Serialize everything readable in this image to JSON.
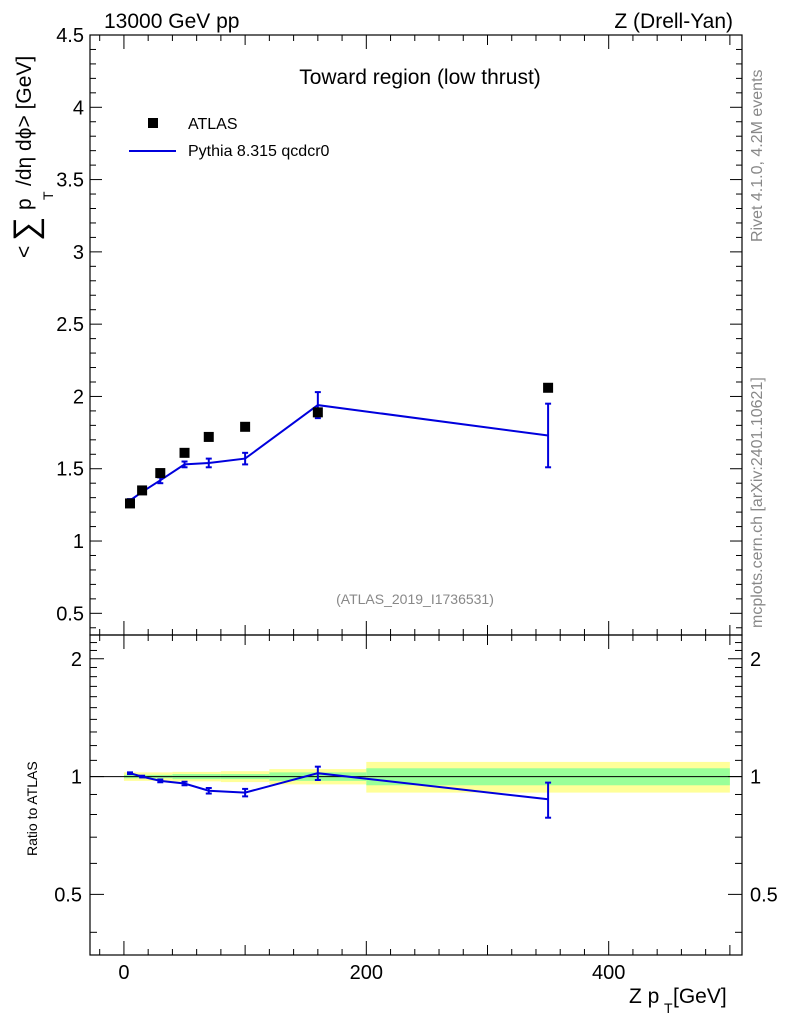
{
  "header": {
    "left": "13000 GeV pp",
    "right": "Z (Drell-Yan)"
  },
  "side_text": {
    "rivet": "Rivet 4.1.0,  4.2M events",
    "source": "mcplots.cern.ch [arXiv:2401.10621]"
  },
  "chart_data": [
    {
      "type": "scatter",
      "panel": "main",
      "title": "Toward region (low thrust)",
      "watermark": "(ATLAS_2019_I1736531)",
      "ylabel_parts": {
        "open": "<",
        "sum": "∑",
        "p": "p",
        "sub": "T",
        "rest": "/dη dϕ> [GeV]"
      },
      "xlim": [
        -28,
        510
      ],
      "ylim": [
        0.35,
        4.5
      ],
      "yticks": [
        0.5,
        1,
        1.5,
        2,
        2.5,
        3,
        3.5,
        4,
        4.5
      ],
      "ytick_labels": [
        "0.5",
        "1",
        "1.5",
        "2",
        "2.5",
        "3",
        "3.5",
        "4",
        "4.5"
      ],
      "legend": [
        {
          "label": "ATLAS",
          "marker": "square",
          "color": "#000000"
        },
        {
          "label": "Pythia 8.315 qcdcr0",
          "marker": "line",
          "color": "#0000dd"
        }
      ],
      "series": [
        {
          "name": "ATLAS",
          "color": "#000000",
          "x": [
            5,
            15,
            30,
            50,
            70,
            100,
            160,
            350
          ],
          "y": [
            1.26,
            1.35,
            1.47,
            1.61,
            1.72,
            1.79,
            1.89,
            2.06
          ]
        },
        {
          "name": "Pythia 8.315 qcdcr0",
          "color": "#0000dd",
          "x": [
            5,
            15,
            30,
            50,
            70,
            100,
            160,
            350
          ],
          "y": [
            1.28,
            1.34,
            1.42,
            1.53,
            1.54,
            1.57,
            1.94,
            1.73
          ],
          "yerr": [
            0.01,
            0.01,
            0.02,
            0.02,
            0.03,
            0.04,
            0.09,
            0.22
          ]
        }
      ]
    },
    {
      "type": "line",
      "panel": "ratio",
      "ylabel": "Ratio to ATLAS",
      "xlabel_parts": {
        "main": "Z p",
        "sub": "T",
        "unit": " [GeV]"
      },
      "xlim": [
        -28,
        510
      ],
      "ylim": [
        0.35,
        2.3
      ],
      "xticks": [
        0,
        200,
        400
      ],
      "xtick_labels": [
        "0",
        "200",
        "400"
      ],
      "yticks": [
        0.5,
        1,
        2
      ],
      "ytick_labels": [
        "0.5",
        "1",
        "2"
      ],
      "bands": [
        {
          "x0": 0,
          "x1": 40,
          "inner": [
            0.99,
            1.01
          ],
          "outer": [
            0.975,
            1.025
          ]
        },
        {
          "x0": 40,
          "x1": 80,
          "inner": [
            0.985,
            1.015
          ],
          "outer": [
            0.972,
            1.028
          ]
        },
        {
          "x0": 80,
          "x1": 120,
          "inner": [
            0.985,
            1.015
          ],
          "outer": [
            0.968,
            1.032
          ]
        },
        {
          "x0": 120,
          "x1": 200,
          "inner": [
            0.975,
            1.025
          ],
          "outer": [
            0.955,
            1.045
          ]
        },
        {
          "x0": 200,
          "x1": 500,
          "inner": [
            0.95,
            1.05
          ],
          "outer": [
            0.91,
            1.09
          ]
        }
      ],
      "band_colors": {
        "inner": "#99ff99",
        "outer": "#ffff99"
      },
      "series": [
        {
          "name": "Pythia 8.315 qcdcr0 / ATLAS",
          "color": "#0000dd",
          "x": [
            5,
            15,
            30,
            50,
            70,
            100,
            160,
            350
          ],
          "y": [
            1.02,
            1.0,
            0.975,
            0.96,
            0.92,
            0.91,
            1.02,
            0.875
          ],
          "yerr": [
            0.005,
            0.005,
            0.008,
            0.01,
            0.015,
            0.02,
            0.04,
            0.09
          ]
        }
      ]
    }
  ]
}
